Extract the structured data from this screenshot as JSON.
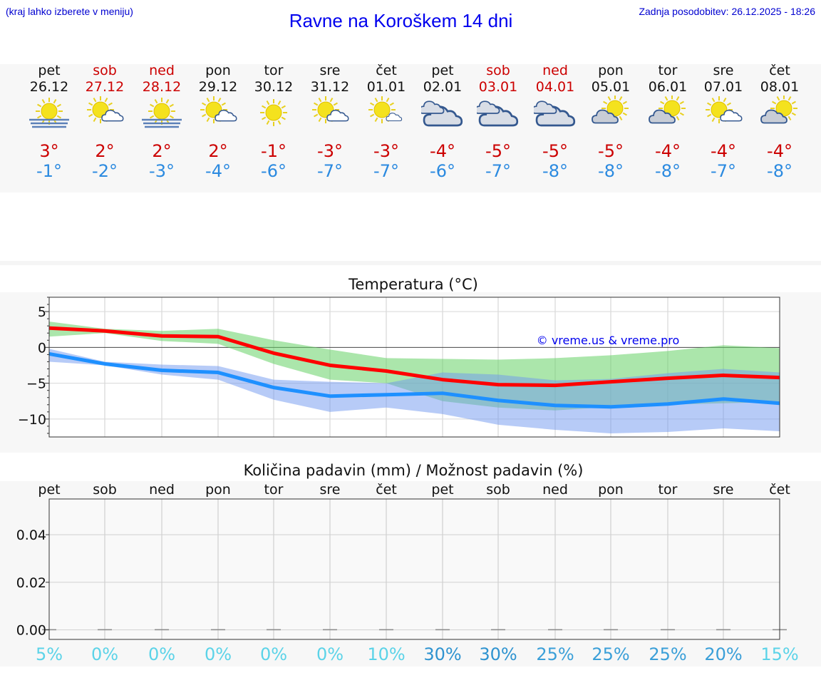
{
  "header": {
    "hint": "(kraj lahko izberete v meniju)",
    "title": "Ravne na Koroškem 14 dni",
    "updated": "Zadnja posodobitev: 26.12.2025 - 18:26"
  },
  "colors": {
    "weekday": "#111111",
    "weekend": "#cc0000",
    "high": "#cc0000",
    "low": "#2b8ae0",
    "prob_low": "#5bd3e8",
    "prob_high": "#2e93d0"
  },
  "days": [
    {
      "name": "pet",
      "date": "26.12",
      "weekend": false,
      "icon": "sun-fog-icon",
      "high": "3°",
      "low": "-1°",
      "prob": "5%"
    },
    {
      "name": "sob",
      "date": "27.12",
      "weekend": true,
      "icon": "sun-small-cloud-icon",
      "high": "2°",
      "low": "-2°",
      "prob": "0%"
    },
    {
      "name": "ned",
      "date": "28.12",
      "weekend": true,
      "icon": "sun-fog-icon",
      "high": "2°",
      "low": "-3°",
      "prob": "0%"
    },
    {
      "name": "pon",
      "date": "29.12",
      "weekend": false,
      "icon": "sun-small-cloud-icon",
      "high": "2°",
      "low": "-4°",
      "prob": "0%"
    },
    {
      "name": "tor",
      "date": "30.12",
      "weekend": false,
      "icon": "sun-icon",
      "high": "-1°",
      "low": "-6°",
      "prob": "0%"
    },
    {
      "name": "sre",
      "date": "31.12",
      "weekend": false,
      "icon": "sun-small-cloud-icon",
      "high": "-3°",
      "low": "-7°",
      "prob": "0%"
    },
    {
      "name": "čet",
      "date": "01.01",
      "weekend": false,
      "icon": "sun-tiny-cloud-icon",
      "high": "-3°",
      "low": "-7°",
      "prob": "10%"
    },
    {
      "name": "pet",
      "date": "02.01",
      "weekend": false,
      "icon": "cloud-icon",
      "high": "-4°",
      "low": "-6°",
      "prob": "30%"
    },
    {
      "name": "sob",
      "date": "03.01",
      "weekend": true,
      "icon": "cloud-icon",
      "high": "-5°",
      "low": "-7°",
      "prob": "30%"
    },
    {
      "name": "ned",
      "date": "04.01",
      "weekend": true,
      "icon": "cloud-icon",
      "high": "-5°",
      "low": "-8°",
      "prob": "25%"
    },
    {
      "name": "pon",
      "date": "05.01",
      "weekend": false,
      "icon": "sun-behind-cloud-icon",
      "high": "-5°",
      "low": "-8°",
      "prob": "25%"
    },
    {
      "name": "tor",
      "date": "06.01",
      "weekend": false,
      "icon": "sun-behind-cloud-icon",
      "high": "-4°",
      "low": "-8°",
      "prob": "25%"
    },
    {
      "name": "sre",
      "date": "07.01",
      "weekend": false,
      "icon": "sun-small-cloud-icon",
      "high": "-4°",
      "low": "-7°",
      "prob": "20%"
    },
    {
      "name": "čet",
      "date": "08.01",
      "weekend": false,
      "icon": "sun-behind-cloud-icon",
      "high": "-4°",
      "low": "-8°",
      "prob": "15%"
    }
  ],
  "chart_data": [
    {
      "type": "line",
      "title": "Temperatura (°C)",
      "ylim": [
        -12.5,
        7
      ],
      "yticks": [
        5,
        0,
        -5,
        -10
      ],
      "ytick_labels": [
        "5",
        "0",
        "−5",
        "−10"
      ],
      "watermark": "© vreme.us & vreme.pro",
      "grid": true,
      "x": [
        0,
        1,
        2,
        3,
        4,
        5,
        6,
        7,
        8,
        9,
        10,
        11,
        12,
        13
      ],
      "series": [
        {
          "name": "max",
          "color": "#ff0000",
          "values": [
            2.7,
            2.3,
            1.6,
            1.5,
            -0.8,
            -2.5,
            -3.3,
            -4.5,
            -5.2,
            -5.3,
            -4.8,
            -4.3,
            -3.9,
            -4.2
          ]
        },
        {
          "name": "min",
          "color": "#1e90ff",
          "values": [
            -0.9,
            -2.3,
            -3.2,
            -3.5,
            -5.6,
            -6.8,
            -6.6,
            -6.4,
            -7.4,
            -8.1,
            -8.3,
            -7.9,
            -7.2,
            -7.8
          ]
        }
      ],
      "bands": [
        {
          "name": "max-range",
          "color": "#66d166",
          "opacity": 0.55,
          "upper": [
            3.6,
            2.6,
            2.3,
            2.6,
            1.0,
            -0.3,
            -1.5,
            -1.6,
            -1.7,
            -1.5,
            -1.1,
            -0.5,
            0.3,
            -0.1
          ],
          "lower": [
            1.5,
            2.0,
            0.9,
            0.5,
            -2.3,
            -4.5,
            -5.0,
            -7.5,
            -8.4,
            -8.8,
            -8.3,
            -8.0,
            -7.8,
            -7.6
          ]
        },
        {
          "name": "min-range",
          "color": "#6f97ef",
          "opacity": 0.5,
          "upper": [
            -0.2,
            -2.0,
            -2.4,
            -2.6,
            -4.5,
            -4.8,
            -5.0,
            -3.5,
            -3.8,
            -4.6,
            -4.4,
            -3.6,
            -3.0,
            -3.5
          ],
          "lower": [
            -2.0,
            -2.5,
            -3.8,
            -4.5,
            -7.3,
            -9.0,
            -8.4,
            -9.3,
            -10.8,
            -11.5,
            -12.0,
            -11.8,
            -11.3,
            -11.7
          ]
        }
      ]
    },
    {
      "type": "bar",
      "title": "Količina padavin (mm) / Možnost padavin (%)",
      "ylim": [
        -0.004,
        0.055
      ],
      "yticks": [
        0.0,
        0.02,
        0.04
      ],
      "ytick_labels": [
        "0.00",
        "0.02",
        "0.04"
      ],
      "grid": true,
      "categories": [
        "pet",
        "sob",
        "ned",
        "pon",
        "tor",
        "sre",
        "čet",
        "pet",
        "sob",
        "ned",
        "pon",
        "tor",
        "sre",
        "čet"
      ],
      "values": [
        0,
        0,
        0,
        0,
        0,
        0,
        0,
        0,
        0,
        0,
        0,
        0,
        0,
        0
      ],
      "probability": [
        "5%",
        "0%",
        "0%",
        "0%",
        "0%",
        "0%",
        "10%",
        "30%",
        "30%",
        "25%",
        "25%",
        "25%",
        "20%",
        "15%"
      ]
    }
  ]
}
